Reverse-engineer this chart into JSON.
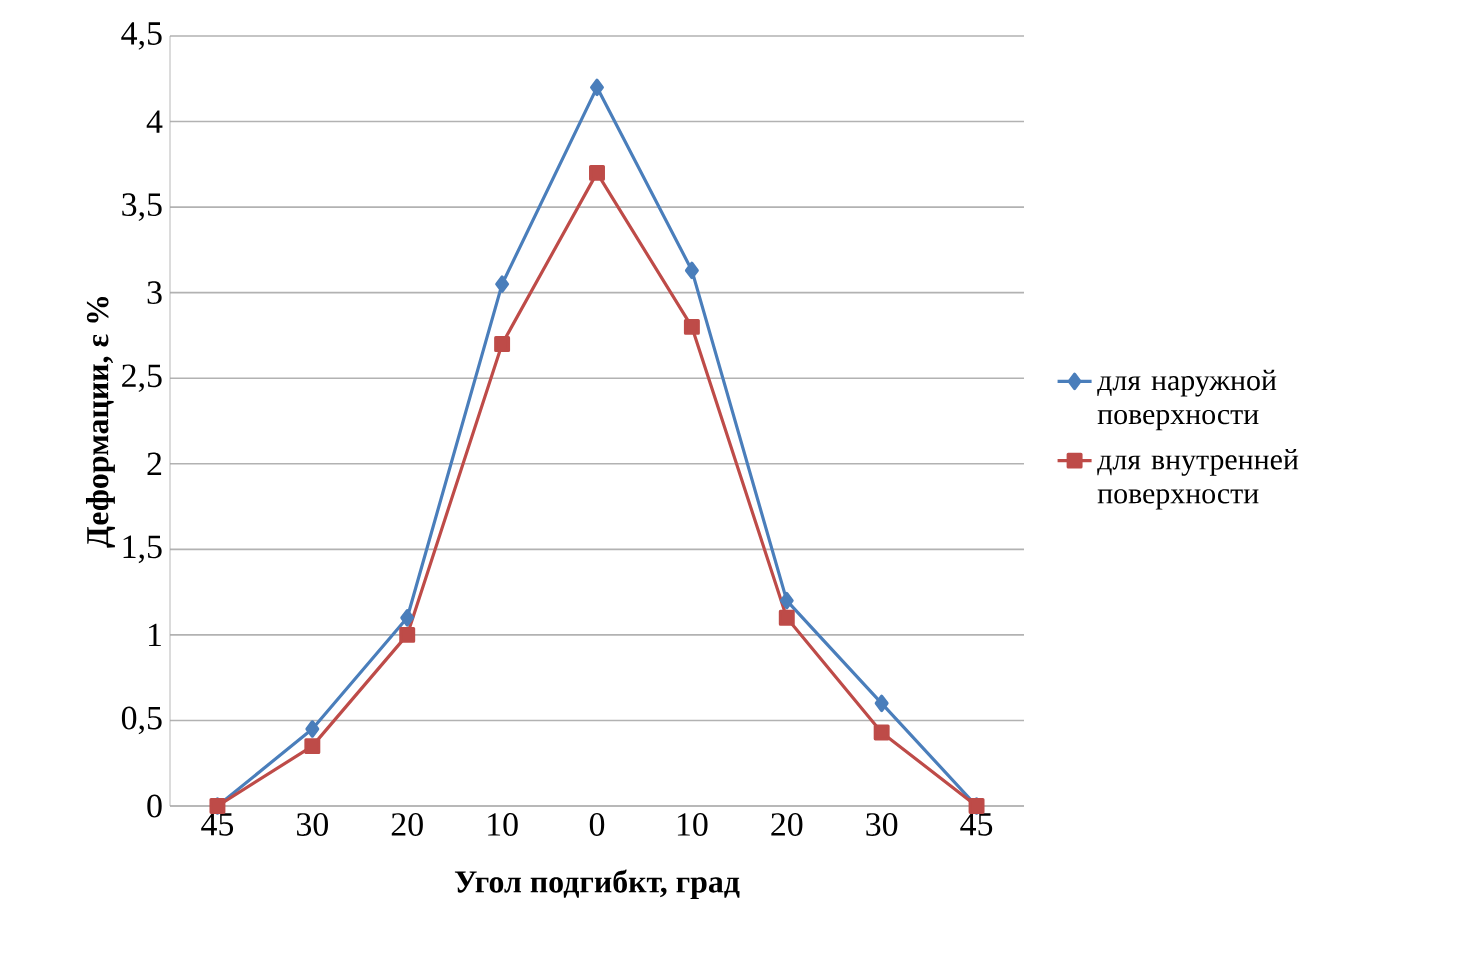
{
  "chart_data": {
    "type": "line",
    "xlabel": "Угол подгибкт, град",
    "ylabel": "Деформации, ε %",
    "categories": [
      "45",
      "30",
      "20",
      "10",
      "0",
      "10",
      "20",
      "30",
      "45"
    ],
    "series": [
      {
        "name": "для наружной поверхности",
        "color": "#4a7ebb",
        "marker": "diamond",
        "values": [
          0,
          0.45,
          1.1,
          3.05,
          4.2,
          3.13,
          1.2,
          0.6,
          0
        ]
      },
      {
        "name": "для внутренней поверхности",
        "color": "#be4b48",
        "marker": "square",
        "values": [
          0,
          0.35,
          1.0,
          2.7,
          3.7,
          2.8,
          1.1,
          0.43,
          0
        ]
      }
    ],
    "ylim": [
      0,
      4.5
    ],
    "yticks": [
      0,
      {
        "value": 0.5,
        "label": "0,5"
      },
      1,
      {
        "value": 1.5,
        "label": "1,5"
      },
      2,
      {
        "value": 2.5,
        "label": "2,5"
      },
      3,
      {
        "value": 3.5,
        "label": "3,5"
      },
      4,
      {
        "value": 4.5,
        "label": "4,5"
      }
    ],
    "grid": "y",
    "legend": "right",
    "line_style": "solid"
  }
}
